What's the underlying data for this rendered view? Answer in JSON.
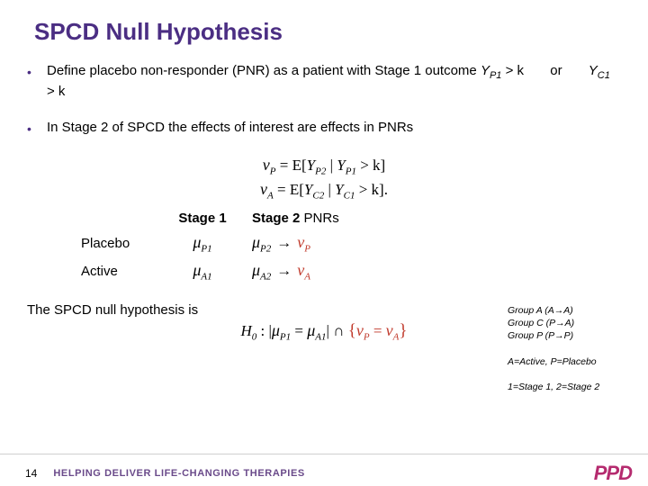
{
  "title": {
    "text": "SPCD Null Hypothesis",
    "color": "#4b2e83",
    "fontsize": 26
  },
  "colors": {
    "bullet": "#4b2e83",
    "text": "#000000",
    "nu": "#c0392b",
    "tagline": "#6a4a8a",
    "logo": "#b52b6f",
    "footer_rule": "#d0d0d0",
    "background": "#ffffff"
  },
  "bullets": [
    {
      "pre": "Define placebo non-responder (PNR) as a patient with Stage 1 outcome  ",
      "math1_var": "Y",
      "math1_sub": "P1",
      "math1_op": " > k",
      "sep": "      or      ",
      "math2_var": "Y",
      "math2_sub": "C1",
      "math2_op": " > k"
    },
    {
      "text": "In Stage 2 of SPCD the effects of interest are effects in PNRs"
    }
  ],
  "formulas": {
    "line1": {
      "lhs_sym": "ν",
      "lhs_sub": "P",
      "eq": " = E[",
      "a_sym": "Y",
      "a_sub": "P2",
      "mid": " | ",
      "b_sym": "Y",
      "b_sub": "P1",
      "rhs": " > k]"
    },
    "line2": {
      "lhs_sym": "ν",
      "lhs_sub": "A",
      "eq": " = E[",
      "a_sym": "Y",
      "a_sub": "C2",
      "mid": " | ",
      "b_sym": "Y",
      "b_sub": "C1",
      "rhs": " > k]."
    }
  },
  "table": {
    "head1": "Stage 1",
    "head2_bold": "Stage 2",
    "head2_rest": " PNRs",
    "rows": [
      {
        "label": "Placebo",
        "c1_sym": "μ",
        "c1_sub": "P1",
        "c2_sym": "μ",
        "c2_sub": "P2",
        "arrow": "→",
        "nu_sym": "ν",
        "nu_sub": "P"
      },
      {
        "label": "Active",
        "c1_sym": "μ",
        "c1_sub": "A1",
        "c2_sym": "μ",
        "c2_sub": "A2",
        "arrow": "→",
        "nu_sym": "ν",
        "nu_sub": "A"
      }
    ]
  },
  "side_note": {
    "g1": "Group A (A→A)",
    "g2": "Group C (P→A)",
    "g3": "Group P (P→P)",
    "k1": "A=Active, P=Placebo",
    "k2": "1=Stage 1, 2=Stage 2"
  },
  "null": {
    "label": "The SPCD null hypothesis is",
    "H0": "H",
    "H0sub": "0",
    "colon": " : |",
    "mu1_sym": "μ",
    "mu1_sub": "P1",
    "eqs": " = ",
    "mu2_sym": "μ",
    "mu2_sub": "A1",
    "bar": "|  ∩  ",
    "lb": "{",
    "nu1_sym": "ν",
    "nu1_sub": "P",
    "eq2": " = ",
    "nu2_sym": "ν",
    "nu2_sub": "A",
    "rb": "}"
  },
  "footer": {
    "page": "14",
    "tagline": "HELPING DELIVER LIFE-CHANGING THERAPIES",
    "logo": "PPD"
  }
}
